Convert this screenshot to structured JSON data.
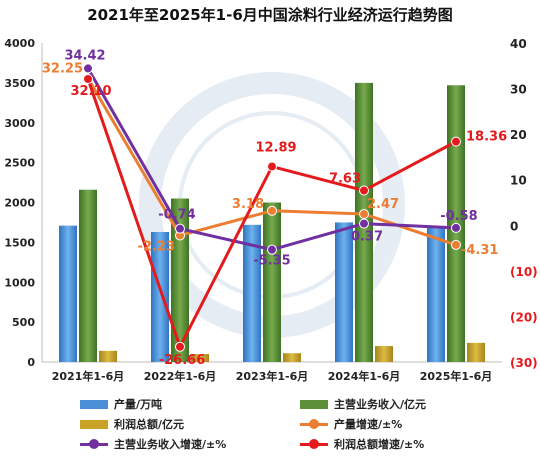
{
  "chart_data": {
    "type": "bar",
    "title": "2021年至2025年1-6月中国涂料行业经济运行趋势图",
    "categories": [
      "2021年1-6月",
      "2022年1-6月",
      "2023年1-6月",
      "2024年1-6月",
      "2025年1-6月"
    ],
    "y_left": {
      "ylim": [
        0,
        4000
      ],
      "ticks": [
        0,
        500,
        1000,
        1500,
        2000,
        2500,
        3000,
        3500,
        4000
      ],
      "tick_labels": [
        "0",
        "500",
        "1000",
        "1500",
        "2000",
        "2500",
        "3000",
        "3500",
        "4000"
      ]
    },
    "y_right": {
      "ylim": [
        -30,
        40
      ],
      "ticks": [
        40,
        30,
        20,
        10,
        0,
        -10,
        -20,
        -30
      ],
      "tick_labels": [
        "40",
        "30",
        "20",
        "10",
        "0",
        "(10)",
        "(20)",
        "(30)"
      ]
    },
    "bar_series": [
      {
        "name": "产量/万吨",
        "color": "#4a90d9",
        "values": [
          1710,
          1630,
          1720,
          1750,
          1700
        ]
      },
      {
        "name": "主营业务收入/亿元",
        "color": "#5c8f37",
        "values": [
          2160,
          2050,
          2000,
          3500,
          3470
        ]
      },
      {
        "name": "利润总额/亿元",
        "color": "#c9a227",
        "values": [
          140,
          100,
          110,
          200,
          240
        ]
      }
    ],
    "line_series": [
      {
        "name": "产量增速/±%",
        "color": "#ed7d31",
        "values": [
          32.25,
          -2.23,
          3.18,
          2.47,
          -4.31
        ],
        "labels": [
          "32.25",
          "-2.23",
          "3.18",
          "2.47",
          "-4.31"
        ]
      },
      {
        "name": "主营业务收入增速/±%",
        "color": "#7030a0",
        "values": [
          34.42,
          -0.74,
          -5.35,
          0.37,
          -0.58
        ],
        "labels": [
          "34.42",
          "-0.74",
          "-5.35",
          "0.37",
          "-0.58"
        ]
      },
      {
        "name": "利润总额增速/±%",
        "color": "#e41a1c",
        "values": [
          32.1,
          -26.66,
          12.89,
          7.63,
          18.36
        ],
        "labels": [
          "32.10",
          "-26.66",
          "12.89",
          "7.63",
          "18.36"
        ]
      }
    ],
    "legend": [
      {
        "name": "产量/万吨",
        "kind": "bar",
        "color": "#4a90d9"
      },
      {
        "name": "主营业务收入/亿元",
        "kind": "bar",
        "color": "#5c8f37"
      },
      {
        "name": "利润总额/亿元",
        "kind": "bar",
        "color": "#c9a227"
      },
      {
        "name": "产量增速/±%",
        "kind": "line",
        "color": "#ed7d31"
      },
      {
        "name": "主营业务收入增速/±%",
        "kind": "line",
        "color": "#7030a0"
      },
      {
        "name": "利润总额增速/±%",
        "kind": "line",
        "color": "#e41a1c"
      }
    ],
    "legend_position": "bottom",
    "grid": false
  }
}
